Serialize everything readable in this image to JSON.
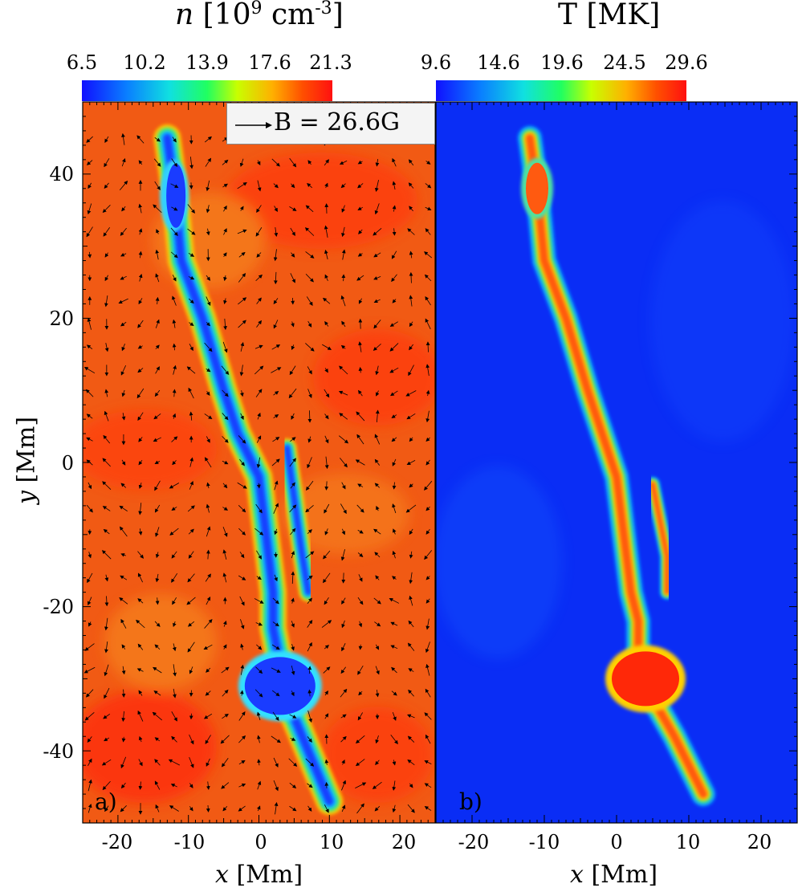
{
  "panels": [
    {
      "id": "a",
      "letter": "a)",
      "title_var": "n",
      "title_unit": "[10",
      "title_exp1": "9",
      "title_mid": " cm",
      "title_exp2": "-3",
      "title_end": "]",
      "colorbar_ticks": [
        "6.5",
        "10.2",
        "13.9",
        "17.6",
        "21.3"
      ],
      "colorbar_range": [
        6.5,
        21.3
      ],
      "quiver_key": "B = 26.6G",
      "xlabel_var": "x",
      "xlabel_unit": " [Mm]",
      "ylabel_var": "y",
      "ylabel_unit": " [Mm]"
    },
    {
      "id": "b",
      "letter": "b)",
      "title": "T [MK]",
      "colorbar_ticks": [
        "9.6",
        "14.6",
        "19.6",
        "24.5",
        "29.6"
      ],
      "colorbar_range": [
        9.6,
        29.6
      ],
      "xlabel_var": "x",
      "xlabel_unit": " [Mm]"
    }
  ],
  "axes": {
    "x_ticks": [
      "-20",
      "-10",
      "0",
      "10",
      "20"
    ],
    "y_ticks": [
      "40",
      "20",
      "0",
      "-20",
      "-40"
    ],
    "xlim": [
      -25,
      25
    ],
    "ylim": [
      -50,
      50
    ]
  },
  "chart_data": [
    {
      "type": "heatmap",
      "title": "n [10^9 cm^-3]",
      "xlabel": "x [Mm]",
      "ylabel": "y [Mm]",
      "xlim": [
        -25,
        25
      ],
      "ylim": [
        -50,
        50
      ],
      "color_range": [
        6.5,
        21.3
      ],
      "colormap": "jet",
      "overlay": "magnetic field vectors",
      "quiver_reference": "B = 26.6G",
      "structure_path": [
        [
          -13,
          45
        ],
        [
          -12,
          38
        ],
        [
          -11,
          28
        ],
        [
          -8,
          20
        ],
        [
          -5,
          10
        ],
        [
          -3,
          4
        ],
        [
          0,
          -2
        ],
        [
          1,
          -10
        ],
        [
          2,
          -18
        ],
        [
          2,
          -23
        ],
        [
          3,
          -28
        ],
        [
          4,
          -33
        ],
        [
          7,
          -40
        ],
        [
          10,
          -47
        ]
      ],
      "secondary_path": [
        [
          4,
          2
        ],
        [
          5,
          -5
        ],
        [
          6,
          -12
        ],
        [
          7,
          -18
        ]
      ],
      "low_value_blob": {
        "center": [
          3,
          -31
        ],
        "value": 6.5
      },
      "background_value": 19.5
    },
    {
      "type": "heatmap",
      "title": "T [MK]",
      "xlabel": "x [Mm]",
      "xlim": [
        -25,
        25
      ],
      "ylim": [
        -50,
        50
      ],
      "color_range": [
        9.6,
        29.6
      ],
      "colormap": "jet",
      "structure_path": [
        [
          -12,
          45
        ],
        [
          -11,
          38
        ],
        [
          -10,
          28
        ],
        [
          -7,
          20
        ],
        [
          -4,
          10
        ],
        [
          -2,
          4
        ],
        [
          0,
          -2
        ],
        [
          1,
          -10
        ],
        [
          2,
          -18
        ],
        [
          3,
          -22
        ],
        [
          3,
          -27
        ],
        [
          4,
          -31
        ],
        [
          8,
          -38
        ],
        [
          12,
          -46
        ]
      ],
      "secondary_path": [
        [
          5,
          -3
        ],
        [
          6,
          -8
        ],
        [
          7,
          -13
        ],
        [
          7,
          -18
        ]
      ],
      "high_value_blob": {
        "center": [
          4,
          -30
        ],
        "value": 29.6
      },
      "background_value": 9.6
    }
  ]
}
